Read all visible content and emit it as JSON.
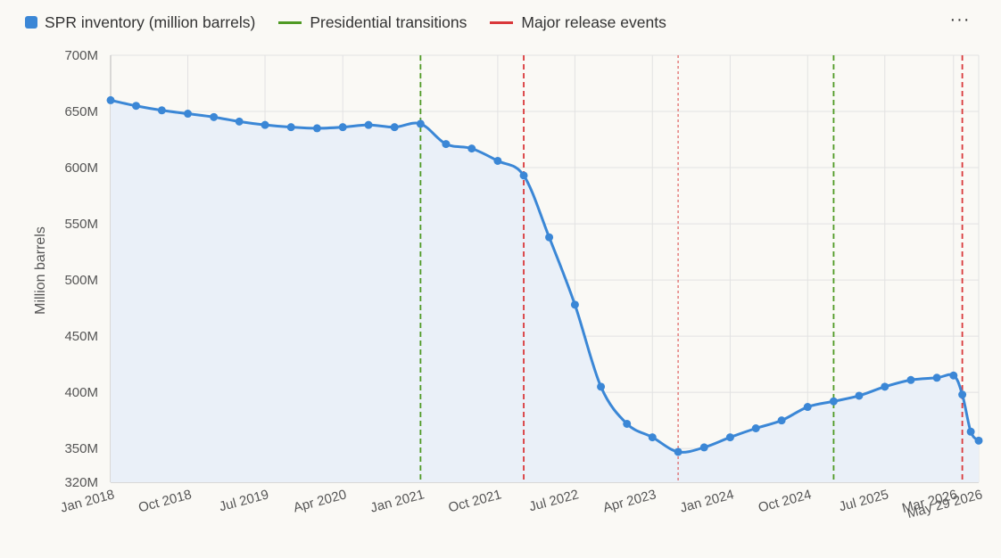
{
  "toolbar": {
    "more_label": "···"
  },
  "colors": {
    "series": "#3b87d6",
    "area": "#eaf0f8",
    "transition": "#4f9a24",
    "release": "#d9383a",
    "grid": "#e2e2e2",
    "axis": "#b8b8b8"
  },
  "chart_data": {
    "type": "line",
    "title": "",
    "xlabel": "",
    "ylabel": "Million barrels",
    "ylim": [
      320,
      700
    ],
    "xlim": [
      "2018-01-01",
      "2026-05-29"
    ],
    "grid": true,
    "legend_position": "top-left",
    "legend": [
      {
        "label": "SPR inventory (million barrels)",
        "kind": "box",
        "color": "#3b87d6"
      },
      {
        "label": "Presidential transitions",
        "kind": "line",
        "color": "#4f9a24"
      },
      {
        "label": "Major release events",
        "kind": "line",
        "color": "#d9383a"
      }
    ],
    "y_ticks": [
      {
        "value": 320,
        "label": "320M"
      },
      {
        "value": 350,
        "label": "350M"
      },
      {
        "value": 400,
        "label": "400M"
      },
      {
        "value": 450,
        "label": "450M"
      },
      {
        "value": 500,
        "label": "500M"
      },
      {
        "value": 550,
        "label": "550M"
      },
      {
        "value": 600,
        "label": "600M"
      },
      {
        "value": 650,
        "label": "650M"
      },
      {
        "value": 700,
        "label": "700M"
      }
    ],
    "x_ticks": [
      {
        "date": "2018-01-01",
        "label": "Jan 2018"
      },
      {
        "date": "2018-10-01",
        "label": "Oct 2018"
      },
      {
        "date": "2019-07-01",
        "label": "Jul 2019"
      },
      {
        "date": "2020-04-01",
        "label": "Apr 2020"
      },
      {
        "date": "2021-01-01",
        "label": "Jan 2021"
      },
      {
        "date": "2021-10-01",
        "label": "Oct 2021"
      },
      {
        "date": "2022-07-01",
        "label": "Jul 2022"
      },
      {
        "date": "2023-04-01",
        "label": "Apr 2023"
      },
      {
        "date": "2024-01-01",
        "label": "Jan 2024"
      },
      {
        "date": "2024-10-01",
        "label": "Oct 2024"
      },
      {
        "date": "2025-07-01",
        "label": "Jul 2025"
      },
      {
        "date": "2026-03-01",
        "label": "Mar 2026"
      },
      {
        "date": "2026-05-29",
        "label": "May 29 2026"
      }
    ],
    "series": [
      {
        "name": "SPR inventory (million barrels)",
        "points": [
          {
            "x": "2018-01-01",
            "y": 660
          },
          {
            "x": "2018-04-01",
            "y": 655
          },
          {
            "x": "2018-07-01",
            "y": 651
          },
          {
            "x": "2018-10-01",
            "y": 648
          },
          {
            "x": "2019-01-01",
            "y": 645
          },
          {
            "x": "2019-04-01",
            "y": 641
          },
          {
            "x": "2019-07-01",
            "y": 638
          },
          {
            "x": "2019-10-01",
            "y": 636
          },
          {
            "x": "2020-01-01",
            "y": 635
          },
          {
            "x": "2020-04-01",
            "y": 636
          },
          {
            "x": "2020-07-01",
            "y": 638
          },
          {
            "x": "2020-10-01",
            "y": 636
          },
          {
            "x": "2021-01-01",
            "y": 639
          },
          {
            "x": "2021-04-01",
            "y": 621
          },
          {
            "x": "2021-07-01",
            "y": 617
          },
          {
            "x": "2021-10-01",
            "y": 606
          },
          {
            "x": "2022-01-01",
            "y": 593
          },
          {
            "x": "2022-04-01",
            "y": 538
          },
          {
            "x": "2022-07-01",
            "y": 478
          },
          {
            "x": "2022-10-01",
            "y": 405
          },
          {
            "x": "2023-01-01",
            "y": 372
          },
          {
            "x": "2023-04-01",
            "y": 360
          },
          {
            "x": "2023-07-01",
            "y": 347
          },
          {
            "x": "2023-10-01",
            "y": 351
          },
          {
            "x": "2024-01-01",
            "y": 360
          },
          {
            "x": "2024-04-01",
            "y": 368
          },
          {
            "x": "2024-07-01",
            "y": 375
          },
          {
            "x": "2024-10-01",
            "y": 387
          },
          {
            "x": "2025-01-01",
            "y": 392
          },
          {
            "x": "2025-04-01",
            "y": 397
          },
          {
            "x": "2025-07-01",
            "y": 405
          },
          {
            "x": "2025-10-01",
            "y": 411
          },
          {
            "x": "2026-01-01",
            "y": 413
          },
          {
            "x": "2026-03-01",
            "y": 415
          },
          {
            "x": "2026-04-01",
            "y": 398
          },
          {
            "x": "2026-05-01",
            "y": 365
          },
          {
            "x": "2026-05-29",
            "y": 357
          }
        ]
      }
    ],
    "reference_lines": [
      {
        "type": "transition",
        "x": "2021-01-01",
        "style": "dashed"
      },
      {
        "type": "transition",
        "x": "2025-01-01",
        "style": "dashed"
      },
      {
        "type": "release",
        "x": "2022-01-01",
        "style": "dashed"
      },
      {
        "type": "release",
        "x": "2023-07-01",
        "style": "dotted"
      },
      {
        "type": "release",
        "x": "2026-04-01",
        "style": "dashed"
      }
    ]
  }
}
